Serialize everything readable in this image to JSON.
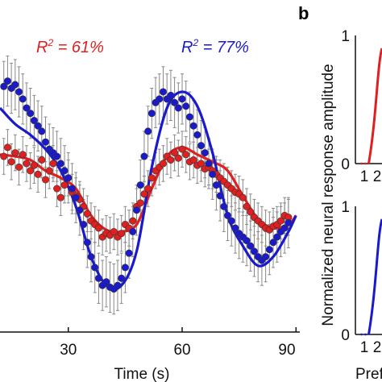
{
  "panel_b_letter": "b",
  "chart_data": [
    {
      "type": "scatter",
      "panel": "a",
      "title": "",
      "xlabel": "Time (s)",
      "ylabel": "",
      "xlim": [
        12,
        91
      ],
      "ylim": [
        -0.2,
        1.45
      ],
      "xticks": [
        30,
        60,
        90
      ],
      "grid": false,
      "annotations": [
        {
          "text_lhs": "R",
          "sup": "2",
          "text_rhs": " = 61%",
          "color": "#e02020"
        },
        {
          "text_lhs": "R",
          "sup": "2",
          "text_rhs": " = 77%",
          "color": "#1a1acc"
        }
      ],
      "series": [
        {
          "color": "#e02020",
          "kind": "points",
          "x": [
            13,
            14,
            15,
            16,
            17,
            18,
            19,
            20,
            21,
            22,
            23,
            24,
            25,
            26,
            27,
            28,
            29,
            30,
            31,
            32,
            33,
            34,
            35,
            36,
            37,
            38,
            39,
            40,
            41,
            42,
            43,
            44,
            45,
            46,
            47,
            48,
            49,
            50,
            51,
            52,
            53,
            54,
            55,
            56,
            57,
            58,
            59,
            60,
            61,
            62,
            63,
            64,
            65,
            66,
            67,
            68,
            69,
            70,
            71,
            72,
            73,
            74,
            75,
            76,
            77,
            78,
            79,
            80,
            81,
            82,
            83,
            84,
            85,
            86,
            87,
            88
          ],
          "y": [
            0.78,
            0.83,
            0.75,
            0.8,
            0.72,
            0.79,
            0.74,
            0.7,
            0.73,
            0.68,
            0.76,
            0.65,
            0.7,
            0.74,
            0.6,
            0.55,
            0.62,
            0.66,
            0.58,
            0.56,
            0.54,
            0.5,
            0.46,
            0.42,
            0.4,
            0.38,
            0.33,
            0.35,
            0.34,
            0.36,
            0.33,
            0.35,
            0.4,
            0.38,
            0.42,
            0.5,
            0.52,
            0.57,
            0.6,
            0.66,
            0.7,
            0.72,
            0.74,
            0.78,
            0.76,
            0.8,
            0.77,
            0.82,
            0.79,
            0.75,
            0.76,
            0.73,
            0.74,
            0.71,
            0.72,
            0.7,
            0.68,
            0.66,
            0.64,
            0.62,
            0.6,
            0.58,
            0.57,
            0.55,
            0.5,
            0.47,
            0.44,
            0.42,
            0.4,
            0.38,
            0.37,
            0.39,
            0.4,
            0.42,
            0.45,
            0.44
          ],
          "err": [
            0.1,
            0.1,
            0.1,
            0.1,
            0.1,
            0.1,
            0.1,
            0.1,
            0.1,
            0.1,
            0.1,
            0.1,
            0.1,
            0.1,
            0.1,
            0.1,
            0.1,
            0.1,
            0.1,
            0.1,
            0.1,
            0.1,
            0.1,
            0.1,
            0.1,
            0.1,
            0.1,
            0.1,
            0.1,
            0.1,
            0.1,
            0.1,
            0.1,
            0.1,
            0.1,
            0.1,
            0.1,
            0.1,
            0.1,
            0.1,
            0.1,
            0.1,
            0.1,
            0.1,
            0.1,
            0.1,
            0.1,
            0.1,
            0.1,
            0.1,
            0.1,
            0.1,
            0.1,
            0.1,
            0.1,
            0.1,
            0.1,
            0.1,
            0.1,
            0.1,
            0.1,
            0.1,
            0.1,
            0.1,
            0.1,
            0.1,
            0.1,
            0.1,
            0.1,
            0.1,
            0.1,
            0.1,
            0.1,
            0.1,
            0.1,
            0.1
          ]
        },
        {
          "color": "#1a1acc",
          "kind": "points",
          "x": [
            13,
            14,
            15,
            16,
            17,
            18,
            19,
            20,
            21,
            22,
            23,
            24,
            25,
            26,
            27,
            28,
            29,
            30,
            31,
            32,
            33,
            34,
            35,
            36,
            37,
            38,
            39,
            40,
            41,
            42,
            43,
            44,
            45,
            46,
            47,
            48,
            49,
            50,
            51,
            52,
            53,
            54,
            55,
            56,
            57,
            58,
            59,
            60,
            61,
            62,
            63,
            64,
            65,
            66,
            67,
            68,
            69,
            70,
            71,
            72,
            73,
            74,
            75,
            76,
            77,
            78,
            79,
            80,
            81,
            82,
            83,
            84,
            85,
            86,
            87,
            88
          ],
          "y": [
            1.17,
            1.2,
            1.16,
            1.18,
            1.14,
            1.1,
            1.05,
            1.02,
            0.98,
            0.95,
            0.92,
            0.86,
            0.82,
            0.8,
            0.78,
            0.74,
            0.7,
            0.66,
            0.6,
            0.55,
            0.48,
            0.4,
            0.3,
            0.22,
            0.16,
            0.1,
            0.06,
            0.08,
            0.05,
            0.04,
            0.06,
            0.1,
            0.16,
            0.24,
            0.36,
            0.48,
            0.62,
            0.78,
            0.92,
            1.02,
            1.08,
            1.1,
            1.14,
            1.1,
            1.12,
            1.08,
            1.05,
            1.1,
            1.06,
            1.0,
            0.95,
            0.9,
            0.84,
            0.8,
            0.74,
            0.68,
            0.62,
            0.56,
            0.5,
            0.45,
            0.42,
            0.38,
            0.35,
            0.33,
            0.31,
            0.28,
            0.25,
            0.22,
            0.2,
            0.22,
            0.26,
            0.3,
            0.33,
            0.36,
            0.38,
            0.41
          ],
          "err": [
            0.14,
            0.14,
            0.14,
            0.14,
            0.14,
            0.14,
            0.14,
            0.14,
            0.14,
            0.14,
            0.14,
            0.14,
            0.14,
            0.14,
            0.14,
            0.14,
            0.14,
            0.14,
            0.14,
            0.14,
            0.14,
            0.14,
            0.14,
            0.14,
            0.14,
            0.14,
            0.14,
            0.14,
            0.14,
            0.14,
            0.14,
            0.14,
            0.14,
            0.14,
            0.14,
            0.14,
            0.14,
            0.14,
            0.14,
            0.14,
            0.14,
            0.14,
            0.14,
            0.14,
            0.14,
            0.14,
            0.14,
            0.14,
            0.14,
            0.14,
            0.14,
            0.14,
            0.14,
            0.14,
            0.14,
            0.14,
            0.14,
            0.14,
            0.14,
            0.14,
            0.14,
            0.14,
            0.14,
            0.14,
            0.14,
            0.14,
            0.14,
            0.14,
            0.14,
            0.14,
            0.14,
            0.14,
            0.14,
            0.14,
            0.14,
            0.14
          ]
        },
        {
          "color": "#e02020",
          "kind": "fit",
          "x": [
            12,
            16,
            20,
            24,
            28,
            32,
            36,
            40,
            44,
            48,
            52,
            56,
            60,
            64,
            68,
            72,
            76,
            80,
            84,
            88,
            90
          ],
          "y": [
            0.79,
            0.78,
            0.76,
            0.7,
            0.66,
            0.6,
            0.45,
            0.37,
            0.36,
            0.4,
            0.6,
            0.78,
            0.83,
            0.79,
            0.75,
            0.7,
            0.56,
            0.43,
            0.38,
            0.4,
            0.45
          ]
        },
        {
          "color": "#1a1acc",
          "kind": "fit",
          "x": [
            12,
            16,
            20,
            24,
            28,
            32,
            36,
            40,
            44,
            48,
            52,
            56,
            60,
            64,
            68,
            72,
            76,
            80,
            84,
            88,
            90
          ],
          "y": [
            1.05,
            0.96,
            0.9,
            0.82,
            0.7,
            0.5,
            0.22,
            0.06,
            0.06,
            0.25,
            0.72,
            1.05,
            1.14,
            1.06,
            0.8,
            0.45,
            0.28,
            0.17,
            0.22,
            0.36,
            0.45
          ]
        }
      ]
    },
    {
      "type": "line",
      "panel": "b-top",
      "ylabel": "Normalized neural response amplitude",
      "xlabel": "Prefe",
      "xticks": [
        "1",
        "2"
      ],
      "yticks": [
        "0",
        "1"
      ],
      "series": [
        {
          "color": "#e02020",
          "x": [
            1.35,
            2.2
          ],
          "y": [
            0.0,
            0.9
          ],
          "dotted_start": true
        }
      ]
    },
    {
      "type": "line",
      "panel": "b-bottom",
      "xticks": [
        "1",
        "2"
      ],
      "yticks": [
        "0",
        "1"
      ],
      "series": [
        {
          "color": "#1a1acc",
          "x": [
            1.35,
            2.2
          ],
          "y": [
            0.0,
            0.9
          ],
          "dotted_start": true
        }
      ]
    }
  ]
}
